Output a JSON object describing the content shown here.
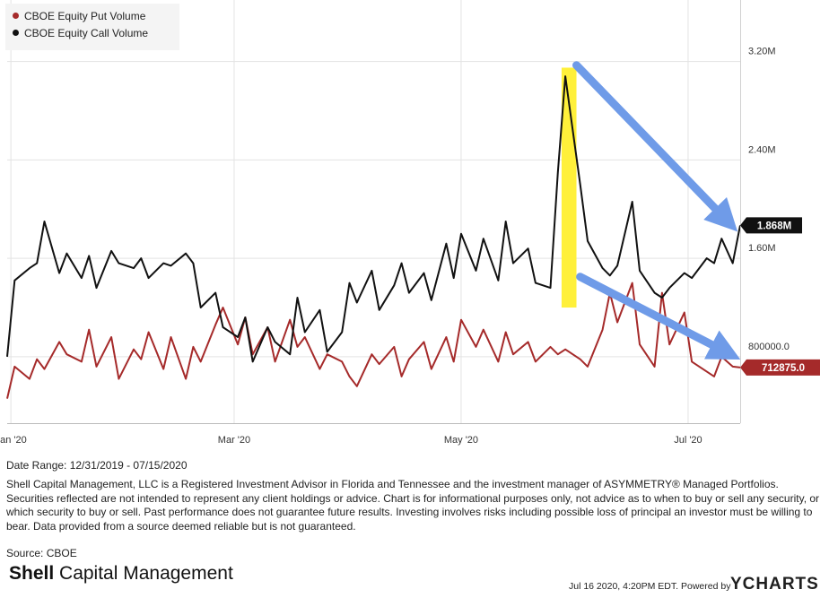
{
  "legend": [
    {
      "label": "CBOE Equity Put Volume",
      "color": "#a52a2a"
    },
    {
      "label": "CBOE Equity Call Volume",
      "color": "#111111"
    }
  ],
  "chart_data": {
    "type": "line",
    "x_range": [
      "2019-12-31",
      "2020-07-15"
    ],
    "y_ticks": [
      {
        "value": 800000,
        "label": "800000.0"
      },
      {
        "value": 1600000,
        "label": "1.60M"
      },
      {
        "value": 2400000,
        "label": "2.40M"
      },
      {
        "value": 3200000,
        "label": "3.20M"
      }
    ],
    "ylim": [
      260000,
      3700000
    ],
    "x_ticks": [
      {
        "date": "2020-01-01",
        "label": "Jan '20"
      },
      {
        "date": "2020-03-01",
        "label": "Mar '20"
      },
      {
        "date": "2020-05-01",
        "label": "May '20"
      },
      {
        "date": "2020-07-01",
        "label": "Jul '20"
      }
    ],
    "series": [
      {
        "name": "CBOE Equity Put Volume",
        "color": "#a52a2a",
        "last_value_label": "712875.0",
        "x": [
          "2019-12-31",
          "2020-01-02",
          "2020-01-06",
          "2020-01-08",
          "2020-01-10",
          "2020-01-14",
          "2020-01-16",
          "2020-01-20",
          "2020-01-22",
          "2020-01-24",
          "2020-01-28",
          "2020-01-30",
          "2020-02-03",
          "2020-02-05",
          "2020-02-07",
          "2020-02-11",
          "2020-02-13",
          "2020-02-17",
          "2020-02-19",
          "2020-02-21",
          "2020-02-25",
          "2020-02-27",
          "2020-03-02",
          "2020-03-04",
          "2020-03-06",
          "2020-03-10",
          "2020-03-12",
          "2020-03-16",
          "2020-03-18",
          "2020-03-20",
          "2020-03-24",
          "2020-03-26",
          "2020-03-30",
          "2020-04-01",
          "2020-04-03",
          "2020-04-07",
          "2020-04-09",
          "2020-04-13",
          "2020-04-15",
          "2020-04-17",
          "2020-04-21",
          "2020-04-23",
          "2020-04-27",
          "2020-04-29",
          "2020-05-01",
          "2020-05-05",
          "2020-05-07",
          "2020-05-11",
          "2020-05-13",
          "2020-05-15",
          "2020-05-19",
          "2020-05-21",
          "2020-05-25",
          "2020-05-27",
          "2020-05-29",
          "2020-06-02",
          "2020-06-04",
          "2020-06-08",
          "2020-06-10",
          "2020-06-12",
          "2020-06-16",
          "2020-06-18",
          "2020-06-22",
          "2020-06-24",
          "2020-06-26",
          "2020-06-30",
          "2020-07-02",
          "2020-07-06",
          "2020-07-08",
          "2020-07-10",
          "2020-07-13",
          "2020-07-15"
        ],
        "values": [
          460000,
          720000,
          620000,
          780000,
          700000,
          920000,
          820000,
          760000,
          1020000,
          720000,
          960000,
          620000,
          860000,
          780000,
          1000000,
          700000,
          960000,
          620000,
          880000,
          760000,
          1060000,
          1200000,
          900000,
          1120000,
          820000,
          1040000,
          760000,
          1100000,
          880000,
          960000,
          700000,
          820000,
          760000,
          640000,
          560000,
          820000,
          740000,
          880000,
          640000,
          780000,
          920000,
          700000,
          960000,
          760000,
          1100000,
          880000,
          1020000,
          760000,
          1000000,
          820000,
          920000,
          760000,
          880000,
          820000,
          860000,
          780000,
          720000,
          1020000,
          1320000,
          1080000,
          1400000,
          900000,
          720000,
          1320000,
          900000,
          1160000,
          760000,
          680000,
          640000,
          800000,
          720000,
          712875
        ]
      },
      {
        "name": "CBOE Equity Call Volume",
        "color": "#111111",
        "last_value_label": "1.868M",
        "x": [
          "2019-12-31",
          "2020-01-02",
          "2020-01-06",
          "2020-01-08",
          "2020-01-10",
          "2020-01-14",
          "2020-01-16",
          "2020-01-20",
          "2020-01-22",
          "2020-01-24",
          "2020-01-28",
          "2020-01-30",
          "2020-02-03",
          "2020-02-05",
          "2020-02-07",
          "2020-02-11",
          "2020-02-13",
          "2020-02-17",
          "2020-02-19",
          "2020-02-21",
          "2020-02-25",
          "2020-02-27",
          "2020-03-02",
          "2020-03-04",
          "2020-03-06",
          "2020-03-10",
          "2020-03-12",
          "2020-03-16",
          "2020-03-18",
          "2020-03-20",
          "2020-03-24",
          "2020-03-26",
          "2020-03-30",
          "2020-04-01",
          "2020-04-03",
          "2020-04-07",
          "2020-04-09",
          "2020-04-13",
          "2020-04-15",
          "2020-04-17",
          "2020-04-21",
          "2020-04-23",
          "2020-04-27",
          "2020-04-29",
          "2020-05-01",
          "2020-05-05",
          "2020-05-07",
          "2020-05-11",
          "2020-05-13",
          "2020-05-15",
          "2020-05-19",
          "2020-05-21",
          "2020-05-25",
          "2020-05-27",
          "2020-05-29",
          "2020-06-02",
          "2020-06-04",
          "2020-06-08",
          "2020-06-10",
          "2020-06-12",
          "2020-06-16",
          "2020-06-18",
          "2020-06-22",
          "2020-06-24",
          "2020-06-26",
          "2020-06-30",
          "2020-07-02",
          "2020-07-06",
          "2020-07-08",
          "2020-07-10",
          "2020-07-13",
          "2020-07-15"
        ],
        "values": [
          800000,
          1420000,
          1520000,
          1560000,
          1900000,
          1480000,
          1640000,
          1440000,
          1620000,
          1360000,
          1660000,
          1560000,
          1520000,
          1600000,
          1440000,
          1560000,
          1540000,
          1640000,
          1560000,
          1200000,
          1320000,
          1040000,
          960000,
          1120000,
          760000,
          1040000,
          920000,
          820000,
          1280000,
          1000000,
          1180000,
          840000,
          1000000,
          1400000,
          1240000,
          1500000,
          1180000,
          1380000,
          1560000,
          1320000,
          1480000,
          1260000,
          1720000,
          1440000,
          1800000,
          1500000,
          1760000,
          1420000,
          1900000,
          1560000,
          1680000,
          1400000,
          1360000,
          2300000,
          3080000,
          2200000,
          1740000,
          1520000,
          1460000,
          1540000,
          2060000,
          1500000,
          1320000,
          1280000,
          1360000,
          1480000,
          1440000,
          1600000,
          1560000,
          1760000,
          1560000,
          1868000
        ]
      }
    ],
    "annotations": [
      {
        "type": "highlight",
        "color": "#fff03a",
        "x_range": [
          "2020-05-28",
          "2020-06-01"
        ]
      },
      {
        "type": "arrow",
        "color": "#6f9be8",
        "from": {
          "x": "2020-06-01",
          "y": 3170000
        },
        "to": {
          "x": "2020-07-14",
          "y": 1880000
        }
      },
      {
        "type": "arrow",
        "color": "#6f9be8",
        "from": {
          "x": "2020-06-02",
          "y": 1450000
        },
        "to": {
          "x": "2020-07-14",
          "y": 810000
        }
      }
    ]
  },
  "footer": {
    "date_range": "Date Range: 12/31/2019 - 07/15/2020",
    "disclaimer": "Shell Capital Management, LLC is a Registered Investment Advisor in Florida and Tennessee and the investment manager of ASYMMETRY® Managed Portfolios. Securities reflected are not intended to represent any client holdings or advice. Chart is for informational purposes only, not advice as to when to buy or sell any security, or which security to buy or sell. Past performance does not guarantee future results. Investing involves risks including possible loss of principal an investor must be willing to bear. Data provided from a source deemed reliable but is not guaranteed.",
    "source": "Source: CBOE",
    "logo_bold": "Shell",
    "logo_rest": " Capital Management",
    "timestamp": "Jul 16 2020, 4:20PM EDT.",
    "powered_by": "Powered by",
    "brand": "YCHARTS"
  }
}
